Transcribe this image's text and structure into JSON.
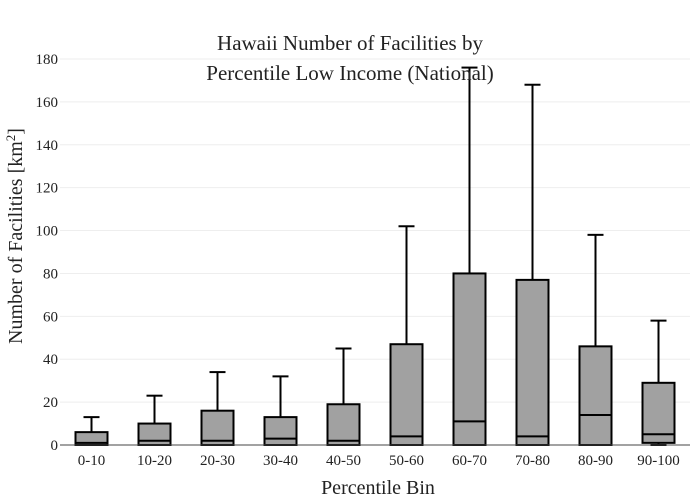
{
  "chart_data": {
    "type": "box",
    "title_line1": "Hawaii Number of Facilities by",
    "title_line2": "Percentile Low Income (National)",
    "xlabel": "Percentile Bin",
    "ylabel_main": "Number of Facilities  [km",
    "ylabel_sup": "2",
    "ylabel_end": "]",
    "ylim": [
      0,
      180
    ],
    "yticks": [
      0,
      20,
      40,
      60,
      80,
      100,
      120,
      140,
      160,
      180
    ],
    "grid": true,
    "box_color": "#a1a1a1",
    "categories": [
      "0-10",
      "10-20",
      "20-30",
      "30-40",
      "40-50",
      "50-60",
      "60-70",
      "70-80",
      "80-90",
      "90-100"
    ],
    "boxes": [
      {
        "min": 0,
        "q1": 0,
        "median": 1,
        "q3": 6,
        "max": 13
      },
      {
        "min": 0,
        "q1": 0,
        "median": 2,
        "q3": 10,
        "max": 23
      },
      {
        "min": 0,
        "q1": 0,
        "median": 2,
        "q3": 16,
        "max": 34
      },
      {
        "min": 0,
        "q1": 0,
        "median": 3,
        "q3": 13,
        "max": 32
      },
      {
        "min": 0,
        "q1": 0,
        "median": 2,
        "q3": 19,
        "max": 45
      },
      {
        "min": 0,
        "q1": 0,
        "median": 4,
        "q3": 47,
        "max": 102
      },
      {
        "min": 0,
        "q1": 0,
        "median": 11,
        "q3": 80,
        "max": 176
      },
      {
        "min": 0,
        "q1": 0,
        "median": 4,
        "q3": 77,
        "max": 168
      },
      {
        "min": 0,
        "q1": 0,
        "median": 14,
        "q3": 46,
        "max": 98
      },
      {
        "min": 0,
        "q1": 1,
        "median": 5,
        "q3": 29,
        "max": 58
      }
    ]
  }
}
